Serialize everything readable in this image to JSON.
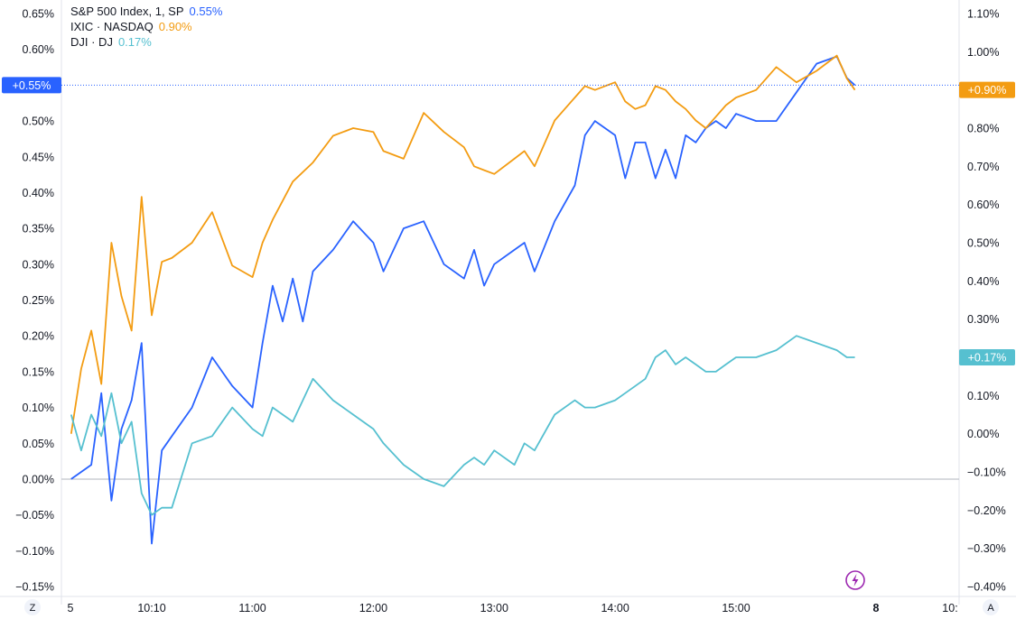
{
  "legend": [
    {
      "label": "S&P 500 Index, 1, SP",
      "value": "0.55%"
    },
    {
      "label": "IXIC · NASDAQ",
      "value": "0.90%"
    },
    {
      "label": "DJI · DJ",
      "value": "0.17%"
    }
  ],
  "colors": {
    "spx": "#2962ff",
    "ixic": "#f39c12",
    "dji": "#56c0d0"
  },
  "badges": {
    "left": "+0.55%",
    "right_ixic": "+0.90%",
    "right_dji": "+0.17%"
  },
  "controls": {
    "left_corner": "Z",
    "right_corner": "A",
    "lightning_icon": "lightning-icon"
  },
  "chart_data": {
    "type": "line",
    "x_tick_labels": [
      "5",
      "10:10",
      "11:00",
      "12:00",
      "13:00",
      "14:00",
      "15:00",
      "8",
      "10:"
    ],
    "y_left_ticks": [
      "0.65%",
      "0.60%",
      "0.55%",
      "0.50%",
      "0.45%",
      "0.40%",
      "0.35%",
      "0.30%",
      "0.25%",
      "0.20%",
      "0.15%",
      "0.10%",
      "0.05%",
      "0.00%",
      "−0.05%",
      "−0.10%",
      "−0.15%"
    ],
    "y_right_ticks": [
      "1.10%",
      "1.00%",
      "0.90%",
      "0.80%",
      "0.70%",
      "0.60%",
      "0.50%",
      "0.40%",
      "0.30%",
      "0.20%",
      "0.10%",
      "0.00%",
      "−0.10%",
      "−0.20%",
      "−0.30%",
      "−0.40%"
    ],
    "ylim_left": [
      -0.15,
      0.65
    ],
    "ylim_right": [
      -0.4,
      1.1
    ],
    "grid": false,
    "series": [
      {
        "name": "S&P 500 Index, 1, SP",
        "axis": "left",
        "color": "#2962ff",
        "x": [
          "9:30",
          "9:40",
          "9:45",
          "9:50",
          "9:55",
          "10:00",
          "10:05",
          "10:10",
          "10:15",
          "10:20",
          "10:30",
          "10:40",
          "10:50",
          "11:00",
          "11:05",
          "11:10",
          "11:15",
          "11:20",
          "11:25",
          "11:30",
          "11:40",
          "11:50",
          "12:00",
          "12:05",
          "12:15",
          "12:25",
          "12:35",
          "12:45",
          "12:50",
          "12:55",
          "13:00",
          "13:10",
          "13:15",
          "13:20",
          "13:30",
          "13:40",
          "13:45",
          "13:50",
          "14:00",
          "14:05",
          "14:10",
          "14:15",
          "14:20",
          "14:25",
          "14:30",
          "14:35",
          "14:40",
          "14:45",
          "14:50",
          "14:55",
          "15:00",
          "15:10",
          "15:20",
          "15:30",
          "15:40",
          "15:50",
          "15:55",
          "15:59"
        ],
        "y": [
          0.0,
          0.02,
          0.12,
          -0.03,
          0.07,
          0.11,
          0.19,
          -0.09,
          0.04,
          0.06,
          0.1,
          0.17,
          0.13,
          0.1,
          0.19,
          0.27,
          0.22,
          0.28,
          0.22,
          0.29,
          0.32,
          0.36,
          0.33,
          0.29,
          0.35,
          0.36,
          0.3,
          0.28,
          0.32,
          0.27,
          0.3,
          0.32,
          0.33,
          0.29,
          0.36,
          0.41,
          0.48,
          0.5,
          0.48,
          0.42,
          0.47,
          0.47,
          0.42,
          0.46,
          0.42,
          0.48,
          0.47,
          0.49,
          0.5,
          0.49,
          0.51,
          0.5,
          0.5,
          0.54,
          0.58,
          0.59,
          0.56,
          0.55
        ]
      },
      {
        "name": "IXIC · NASDAQ",
        "axis": "right",
        "color": "#f39c12",
        "x": [
          "9:30",
          "9:35",
          "9:40",
          "9:45",
          "9:50",
          "9:55",
          "10:00",
          "10:05",
          "10:10",
          "10:15",
          "10:20",
          "10:30",
          "10:40",
          "10:50",
          "11:00",
          "11:05",
          "11:10",
          "11:20",
          "11:30",
          "11:40",
          "11:50",
          "12:00",
          "12:05",
          "12:15",
          "12:25",
          "12:35",
          "12:45",
          "12:50",
          "12:55",
          "13:00",
          "13:10",
          "13:15",
          "13:20",
          "13:30",
          "13:40",
          "13:45",
          "13:50",
          "14:00",
          "14:05",
          "14:10",
          "14:15",
          "14:20",
          "14:25",
          "14:30",
          "14:35",
          "14:40",
          "14:45",
          "14:50",
          "14:55",
          "15:00",
          "15:10",
          "15:20",
          "15:30",
          "15:40",
          "15:50",
          "15:55",
          "15:59"
        ],
        "y": [
          0.0,
          0.17,
          0.27,
          0.13,
          0.5,
          0.36,
          0.27,
          0.62,
          0.31,
          0.45,
          0.46,
          0.5,
          0.58,
          0.44,
          0.41,
          0.5,
          0.56,
          0.66,
          0.71,
          0.78,
          0.8,
          0.79,
          0.74,
          0.72,
          0.84,
          0.79,
          0.75,
          0.7,
          0.69,
          0.68,
          0.72,
          0.74,
          0.7,
          0.82,
          0.88,
          0.91,
          0.9,
          0.92,
          0.87,
          0.85,
          0.86,
          0.91,
          0.9,
          0.87,
          0.85,
          0.82,
          0.8,
          0.83,
          0.86,
          0.88,
          0.9,
          0.96,
          0.92,
          0.95,
          0.99,
          0.93,
          0.9
        ]
      },
      {
        "name": "DJI · DJ",
        "axis": "left",
        "color": "#56c0d0",
        "x": [
          "9:30",
          "9:35",
          "9:40",
          "9:45",
          "9:50",
          "9:55",
          "10:00",
          "10:05",
          "10:10",
          "10:15",
          "10:20",
          "10:30",
          "10:40",
          "10:50",
          "11:00",
          "11:05",
          "11:10",
          "11:20",
          "11:30",
          "11:40",
          "11:50",
          "12:00",
          "12:05",
          "12:15",
          "12:25",
          "12:35",
          "12:45",
          "12:50",
          "12:55",
          "13:00",
          "13:10",
          "13:15",
          "13:20",
          "13:30",
          "13:40",
          "13:45",
          "13:50",
          "14:00",
          "14:05",
          "14:10",
          "14:15",
          "14:20",
          "14:25",
          "14:30",
          "14:35",
          "14:40",
          "14:45",
          "14:50",
          "14:55",
          "15:00",
          "15:10",
          "15:20",
          "15:30",
          "15:40",
          "15:50",
          "15:55",
          "15:59"
        ],
        "y": [
          0.09,
          0.04,
          0.09,
          0.06,
          0.12,
          0.05,
          0.08,
          -0.02,
          -0.05,
          -0.04,
          -0.04,
          0.05,
          0.06,
          0.1,
          0.07,
          0.06,
          0.1,
          0.08,
          0.14,
          0.11,
          0.09,
          0.07,
          0.05,
          0.02,
          0.0,
          -0.01,
          0.02,
          0.03,
          0.02,
          0.04,
          0.02,
          0.05,
          0.04,
          0.09,
          0.11,
          0.1,
          0.1,
          0.11,
          0.12,
          0.13,
          0.14,
          0.17,
          0.18,
          0.16,
          0.17,
          0.16,
          0.15,
          0.15,
          0.16,
          0.17,
          0.17,
          0.18,
          0.2,
          0.19,
          0.18,
          0.17,
          0.17
        ]
      }
    ]
  }
}
